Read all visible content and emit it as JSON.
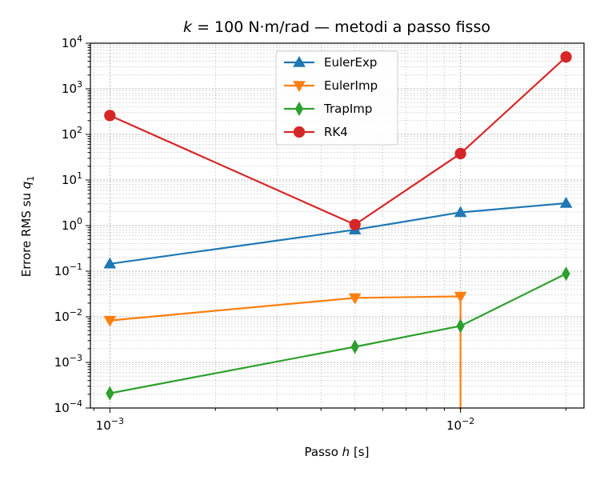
{
  "chart_data": {
    "type": "line",
    "title_parts": {
      "k": "k",
      "eq": " = 100 N·m/rad — metodi a passo fisso"
    },
    "xlabel_parts": {
      "pre": "Passo ",
      "var": "h",
      "post": " [s]"
    },
    "ylabel_parts": {
      "pre": "Errore RMS su ",
      "var": "q",
      "sub": "1"
    },
    "x_scale": "log",
    "y_scale": "log",
    "xlim": [
      0.00088,
      0.0225
    ],
    "ylim": [
      0.0001,
      10000
    ],
    "x_ticks": [
      {
        "value": 0.001,
        "base": "10",
        "exp": "−3"
      },
      {
        "value": 0.01,
        "base": "10",
        "exp": "−2"
      }
    ],
    "y_ticks": [
      {
        "value": 0.0001,
        "base": "10",
        "exp": "−4"
      },
      {
        "value": 0.001,
        "base": "10",
        "exp": "−3"
      },
      {
        "value": 0.01,
        "base": "10",
        "exp": "−2"
      },
      {
        "value": 0.1,
        "base": "10",
        "exp": "−1"
      },
      {
        "value": 1,
        "base": "10",
        "exp": "0"
      },
      {
        "value": 10,
        "base": "10",
        "exp": "1"
      },
      {
        "value": 100,
        "base": "10",
        "exp": "2"
      },
      {
        "value": 1000,
        "base": "10",
        "exp": "3"
      },
      {
        "value": 10000,
        "base": "10",
        "exp": "4"
      }
    ],
    "grid": true,
    "legend_position": "top-center",
    "x": [
      0.001,
      0.005,
      0.01,
      0.02
    ],
    "series": [
      {
        "name": "EulerExp",
        "color": "#1f77b4",
        "marker": "triangle-up",
        "values": [
          0.145,
          0.81,
          1.95,
          3.1
        ]
      },
      {
        "name": "EulerImp",
        "color": "#ff7f0e",
        "marker": "triangle-down",
        "values": [
          0.0083,
          0.026,
          0.028,
          null
        ],
        "note_drop": "line drops below axis at h=0.01"
      },
      {
        "name": "TrapImp",
        "color": "#2ca02c",
        "marker": "thin-diamond",
        "values": [
          0.00021,
          0.0022,
          0.0063,
          0.088
        ]
      },
      {
        "name": "RK4",
        "color": "#d62728",
        "marker": "circle",
        "values": [
          260,
          1.05,
          38,
          5000
        ]
      }
    ]
  }
}
